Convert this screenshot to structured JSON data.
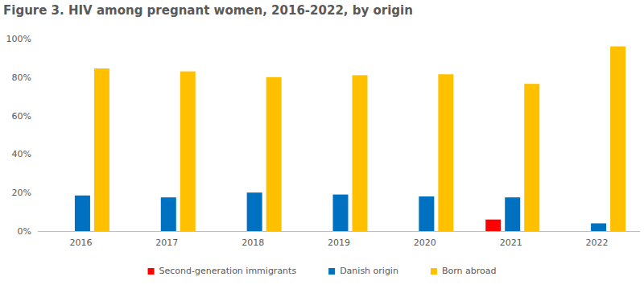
{
  "chart_data": {
    "type": "bar",
    "title": "Figure 3. HIV among pregnant women, 2016-2022, by origin",
    "categories": [
      "2016",
      "2017",
      "2018",
      "2019",
      "2020",
      "2021",
      "2022"
    ],
    "series": [
      {
        "name": "Second-generation immigrants",
        "color": "#ff0000",
        "values": [
          null,
          null,
          null,
          null,
          null,
          6,
          null
        ]
      },
      {
        "name": "Danish origin",
        "color": "#0070c0",
        "values": [
          18.5,
          17.5,
          20,
          19,
          18,
          17.5,
          4
        ]
      },
      {
        "name": "Born abroad",
        "color": "#ffc000",
        "values": [
          84.5,
          83,
          80,
          81,
          81.5,
          76.5,
          96
        ]
      }
    ],
    "ylim": [
      0,
      100
    ],
    "yticks": [
      {
        "value": 0,
        "label": "0%"
      },
      {
        "value": 20,
        "label": "20%"
      },
      {
        "value": 40,
        "label": "40%"
      },
      {
        "value": 60,
        "label": "60%"
      },
      {
        "value": 80,
        "label": "80%"
      },
      {
        "value": 100,
        "label": "100%"
      }
    ],
    "grid": false,
    "legend": "bottom"
  }
}
